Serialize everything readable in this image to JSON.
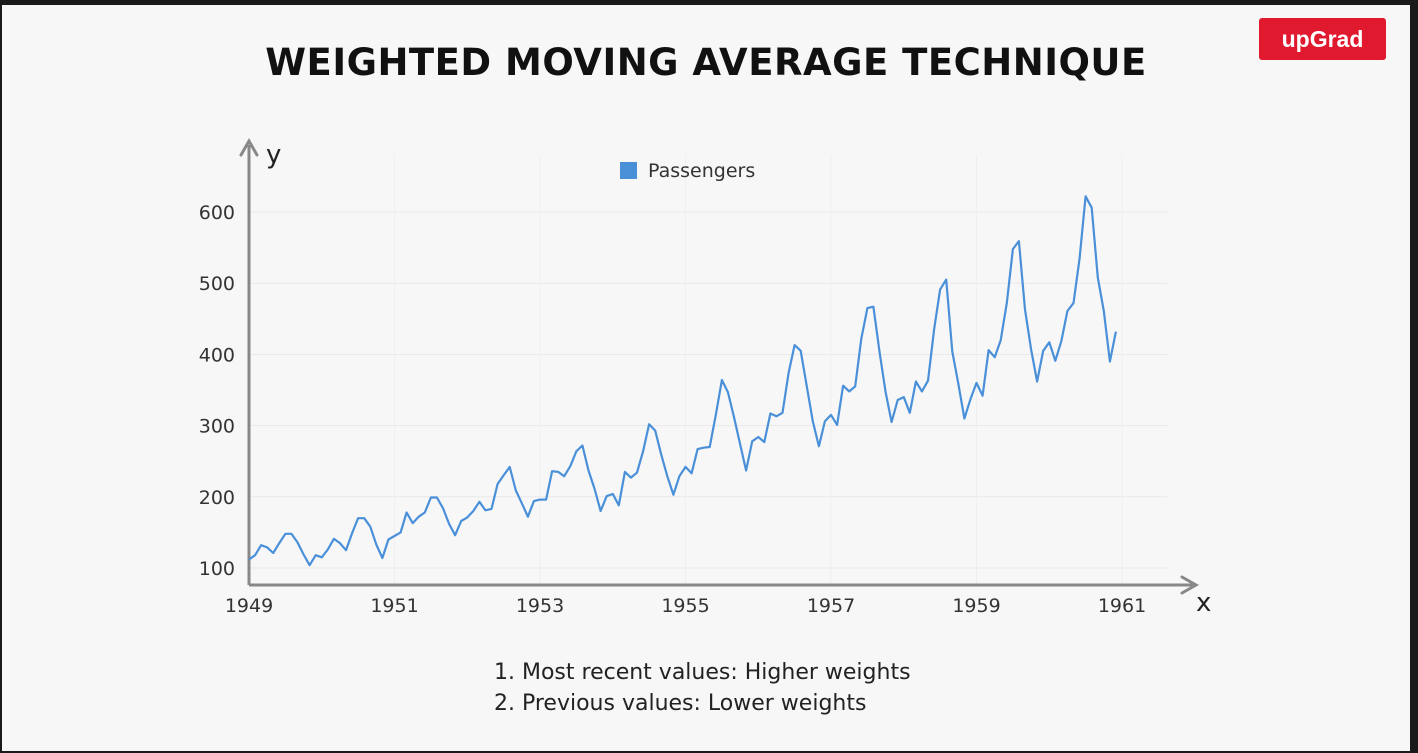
{
  "slide": {
    "title": "WEIGHTED MOVING AVERAGE TECHNIQUE",
    "logo_text": "upGrad",
    "notes": [
      "1. Most recent values: Higher weights",
      "2. Previous values: Lower weights"
    ]
  },
  "colors": {
    "series": "#4a90d9",
    "logo": "#e0192f"
  },
  "chart_data": {
    "type": "line",
    "xlabel": "x",
    "ylabel": "y",
    "xlim": [
      1949,
      1961
    ],
    "ylim": [
      80,
      650
    ],
    "xticks": [
      1949,
      1951,
      1953,
      1955,
      1957,
      1959,
      1961
    ],
    "yticks": [
      100,
      200,
      300,
      400,
      500,
      600
    ],
    "legend": "top-center",
    "grid": true,
    "x_start": 1949,
    "x_step_months": 1,
    "series": [
      {
        "name": "Passengers",
        "values": [
          112,
          118,
          132,
          129,
          121,
          135,
          148,
          148,
          136,
          119,
          104,
          118,
          115,
          126,
          141,
          135,
          125,
          149,
          170,
          170,
          158,
          133,
          114,
          140,
          145,
          150,
          178,
          163,
          172,
          178,
          199,
          199,
          184,
          162,
          146,
          166,
          171,
          180,
          193,
          181,
          183,
          218,
          230,
          242,
          209,
          191,
          172,
          194,
          196,
          196,
          236,
          235,
          229,
          243,
          264,
          272,
          237,
          211,
          180,
          201,
          204,
          188,
          235,
          227,
          234,
          264,
          302,
          293,
          259,
          229,
          203,
          229,
          242,
          233,
          267,
          269,
          270,
          315,
          364,
          347,
          312,
          274,
          237,
          278,
          284,
          277,
          317,
          313,
          318,
          374,
          413,
          405,
          355,
          306,
          271,
          306,
          315,
          301,
          356,
          348,
          355,
          422,
          465,
          467,
          404,
          347,
          305,
          336,
          340,
          318,
          362,
          348,
          363,
          435,
          491,
          505,
          404,
          359,
          310,
          337,
          360,
          342,
          406,
          396,
          420,
          472,
          548,
          559,
          463,
          407,
          362,
          405,
          417,
          391,
          419,
          461,
          472,
          535,
          622,
          606,
          508,
          461,
          390,
          432
        ]
      }
    ]
  }
}
